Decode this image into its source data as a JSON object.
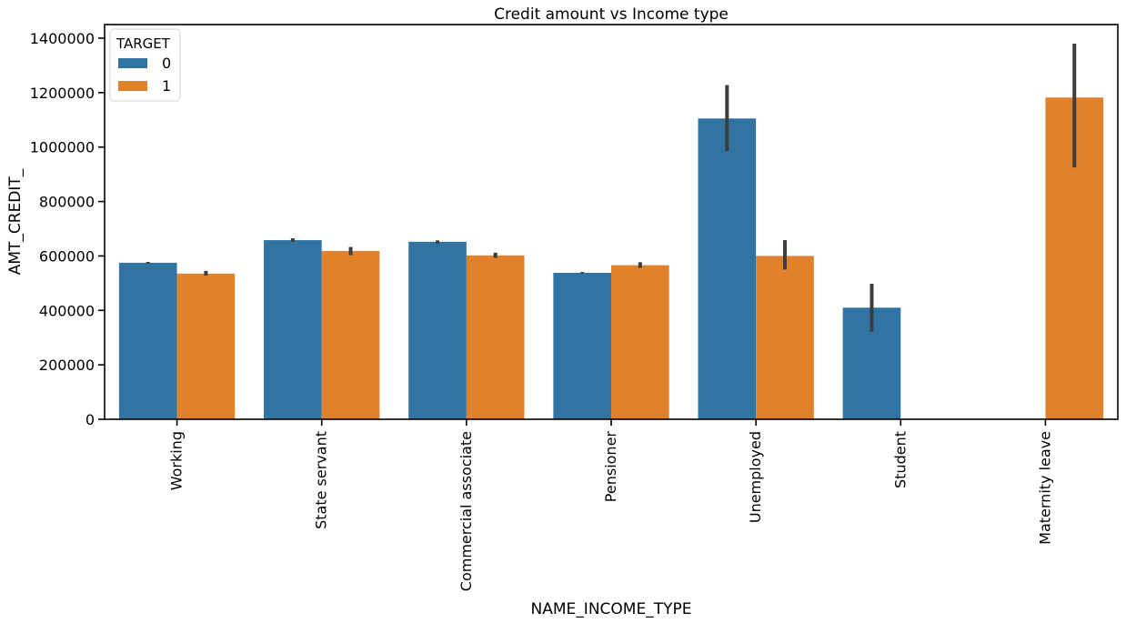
{
  "chart_data": {
    "type": "bar",
    "title": "Credit amount vs Income type",
    "xlabel": "NAME_INCOME_TYPE",
    "ylabel": "AMT_CREDIT_",
    "ylim": [
      0,
      1450000
    ],
    "yticks": [
      0,
      200000,
      400000,
      600000,
      800000,
      1000000,
      1200000,
      1400000
    ],
    "ytick_labels": [
      "0",
      "200000",
      "400000",
      "600000",
      "800000",
      "1000000",
      "1200000",
      "1400000"
    ],
    "categories": [
      "Working",
      "State servant",
      "Commercial associate",
      "Pensioner",
      "Unemployed",
      "Student",
      "Maternity leave"
    ],
    "legend": {
      "title": "TARGET",
      "position": "top-left"
    },
    "grid": false,
    "series": [
      {
        "name": "0",
        "color": "#3274a1",
        "values": [
          575000,
          658000,
          652000,
          538000,
          1105000,
          410000,
          null
        ],
        "errors": [
          [
            572000,
            578000
          ],
          [
            651000,
            665000
          ],
          [
            646000,
            657000
          ],
          [
            535000,
            541000
          ],
          [
            985000,
            1228000
          ],
          [
            322000,
            498000
          ],
          null
        ]
      },
      {
        "name": "1",
        "color": "#e1812c",
        "values": [
          535000,
          618000,
          602000,
          566000,
          600000,
          null,
          1182000
        ],
        "errors": [
          [
            528000,
            545000
          ],
          [
            603000,
            633000
          ],
          [
            593000,
            612000
          ],
          [
            556000,
            577000
          ],
          [
            550000,
            658000
          ],
          null,
          [
            925000,
            1380000
          ]
        ]
      }
    ]
  }
}
